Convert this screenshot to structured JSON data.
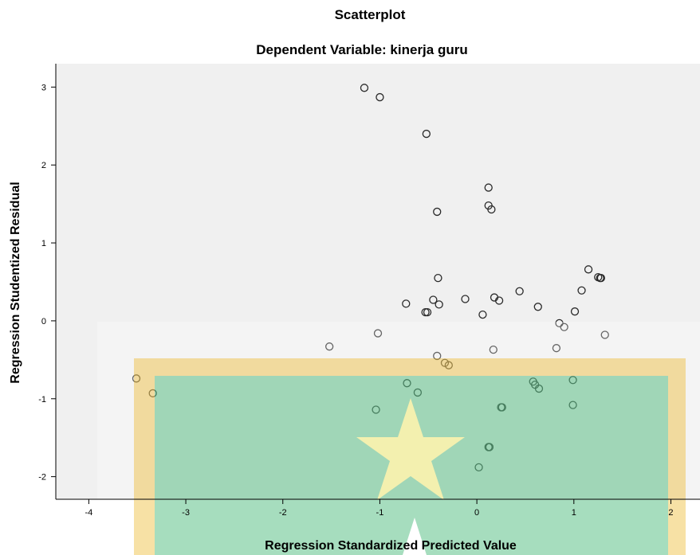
{
  "chart_data": {
    "type": "scatter",
    "title": "Scatterplot",
    "subtitle": "Dependent Variable: kinerja guru",
    "x_label": "Regression Standardized Predicted Value",
    "y_label": "Regression Studentized Residual",
    "x": [
      -1.16,
      -1.0,
      -0.52,
      0.12,
      -0.41,
      0.12,
      0.15,
      1.15,
      1.25,
      1.27,
      1.28,
      -0.4,
      1.08,
      0.44,
      -0.73,
      -0.45,
      -0.39,
      -0.12,
      0.18,
      0.23,
      -0.53,
      -0.51,
      0.63,
      0.06,
      1.01,
      0.85,
      0.9,
      -1.02,
      1.32,
      -1.52,
      0.17,
      0.82,
      -0.41,
      -0.33,
      -0.29,
      -3.51,
      -3.34,
      -0.72,
      -0.61,
      0.58,
      0.6,
      0.64,
      0.99,
      0.99,
      -1.04,
      0.25,
      0.26,
      0.12,
      0.13,
      0.02
    ],
    "series": [
      {
        "color": "#2a2a2a",
        "values": [
          2.99,
          2.87,
          2.4,
          1.71,
          1.4,
          1.48,
          1.43,
          0.66,
          0.56,
          0.55,
          0.55,
          0.55,
          0.39,
          0.38,
          0.22,
          0.27,
          0.21,
          0.28,
          0.3,
          0.26,
          0.11,
          0.11,
          0.18,
          0.08,
          0.12,
          -0.03,
          -0.08,
          -0.16,
          -0.18,
          -0.33,
          -0.37,
          -0.35,
          -0.45,
          -0.54,
          -0.57,
          -0.74,
          -0.93,
          -0.8,
          -0.92,
          -0.78,
          -0.82,
          -0.87,
          -0.76,
          -1.08,
          -1.14,
          -1.11,
          -1.11,
          -1.62,
          -1.62,
          -1.88
        ]
      }
    ],
    "xlim": [
      -4.34,
      2.3
    ],
    "ylim": [
      -2.29,
      3.3
    ],
    "xticks": [
      -4,
      -3,
      -2,
      -1,
      0,
      1,
      2
    ],
    "yticks": [
      -2,
      -1,
      0,
      1,
      2,
      3
    ],
    "plot_background": "#f0f0f0"
  }
}
